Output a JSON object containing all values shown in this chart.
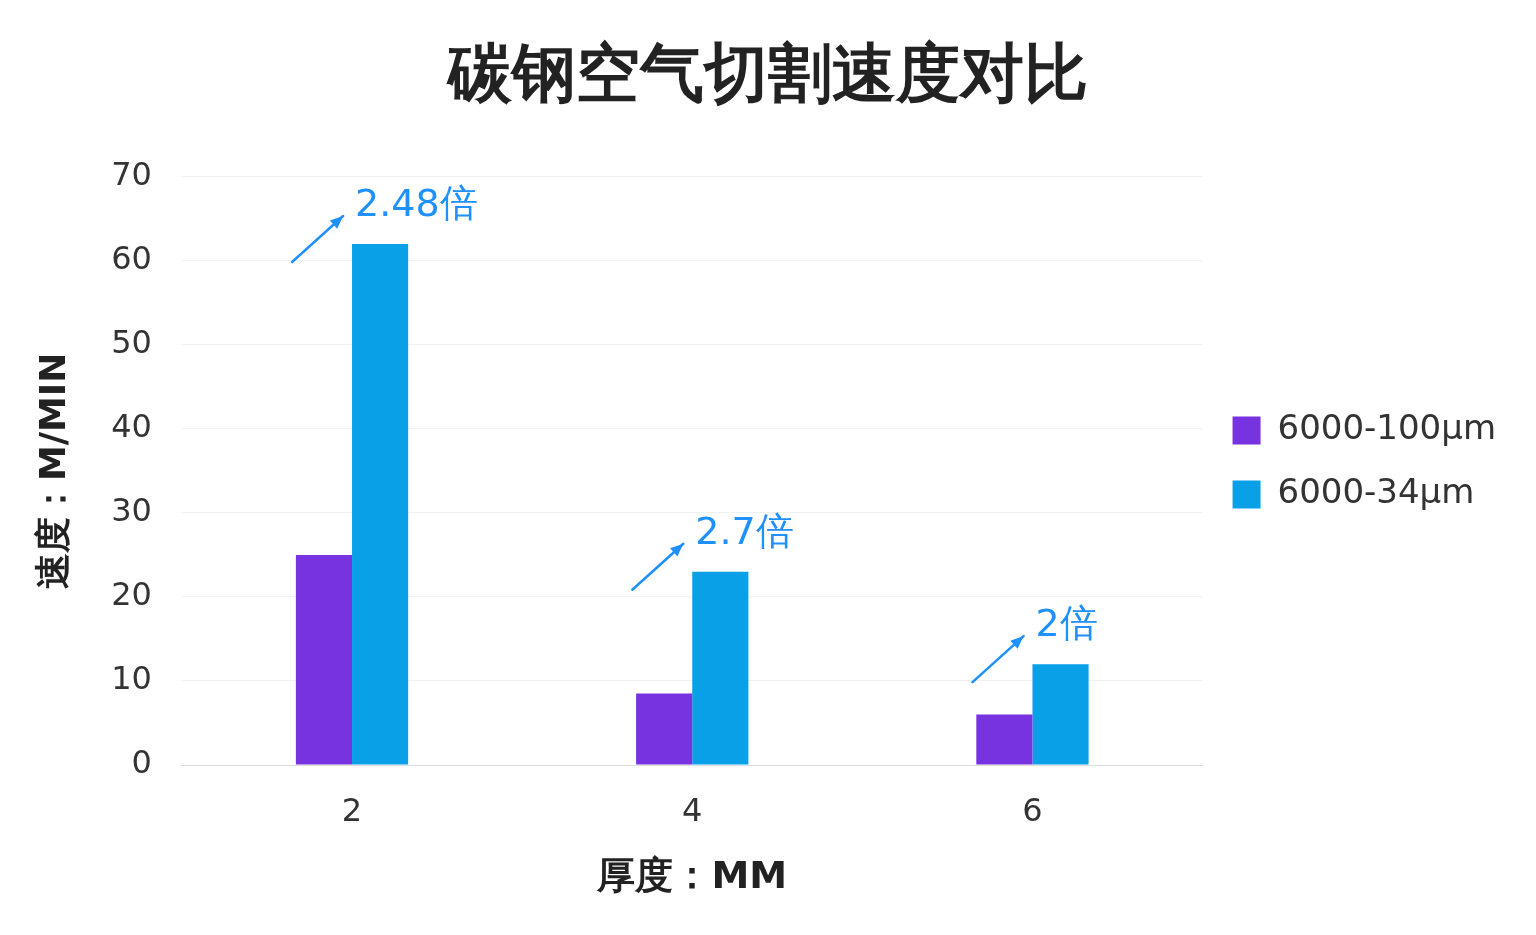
{
  "chart_data": {
    "type": "bar",
    "title": "碳钢空气切割速度对比",
    "xlabel": "厚度：MM",
    "ylabel": "速度：M/MIN",
    "categories": [
      "2",
      "4",
      "6"
    ],
    "series": [
      {
        "name": "6000-100µm",
        "color": "#7733e0",
        "values": [
          25,
          8.5,
          6
        ]
      },
      {
        "name": "6000-34µm",
        "color": "#0aa0e8",
        "values": [
          62,
          23,
          12
        ]
      }
    ],
    "ylim": [
      0,
      70
    ],
    "yticks": [
      0,
      10,
      20,
      30,
      40,
      50,
      60,
      70
    ],
    "grid": "y",
    "legend": "right",
    "annotations": [
      "2.48倍",
      "2.7倍",
      "2倍"
    ]
  }
}
